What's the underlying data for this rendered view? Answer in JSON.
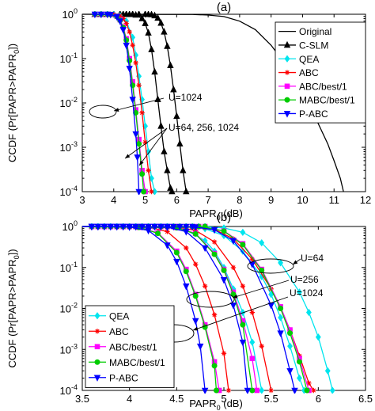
{
  "chart_data": [
    {
      "type": "line",
      "title": "(a)",
      "xlabel": "PAPR",
      "xlabel_sub": "0",
      "xlabel_unit": "(dB)",
      "ylabel_parts": [
        "CCDF (Pr[PAPR>PAPR",
        "0",
        "])"
      ],
      "xlim": [
        3,
        12
      ],
      "ylim": [
        0.0001,
        1
      ],
      "y_scale": "log",
      "xticks": [
        3,
        4,
        5,
        6,
        7,
        8,
        9,
        10,
        11,
        12
      ],
      "yticks": [
        {
          "value": 1,
          "mant": "10",
          "exp": "0"
        },
        {
          "value": 0.1,
          "mant": "10",
          "exp": "-1"
        },
        {
          "value": 0.01,
          "mant": "10",
          "exp": "-2"
        },
        {
          "value": 0.001,
          "mant": "10",
          "exp": "-3"
        },
        {
          "value": 0.0001,
          "mant": "10",
          "exp": "-4"
        }
      ],
      "legend_position": "top-right",
      "series": [
        {
          "name": "Original",
          "color": "#000000",
          "marker": "none",
          "x": [
            3,
            6.5,
            7.0,
            7.5,
            8.0,
            8.5,
            9.0,
            9.5,
            10.0,
            10.5,
            10.8,
            11.0,
            11.2,
            11.3
          ],
          "y": [
            1,
            0.99,
            0.96,
            0.89,
            0.7,
            0.45,
            0.2,
            0.068,
            0.017,
            0.0034,
            0.0012,
            0.0005,
            0.0002,
            0.0001
          ]
        },
        {
          "name": "C-SLM",
          "color": "#000000",
          "marker": "triangle-up",
          "x": [
            3.3,
            5.0,
            5.1,
            5.2,
            5.3,
            5.4,
            5.5,
            5.6,
            5.7,
            5.8,
            5.9,
            6.0,
            6.1,
            6.2,
            6.3
          ],
          "y": [
            1,
            1,
            0.99,
            0.98,
            0.93,
            0.82,
            0.63,
            0.4,
            0.19,
            0.07,
            0.02,
            0.005,
            0.0012,
            0.0003,
            0.0001
          ]
        },
        {
          "name": "C-SLM",
          "color": "#000000",
          "marker": "triangle-up",
          "x": [
            3.3,
            4.3,
            4.5,
            4.7,
            4.9,
            5.0,
            5.1,
            5.2,
            5.3,
            5.4,
            5.5,
            5.6,
            5.7,
            5.8,
            5.85
          ],
          "y": [
            1,
            1,
            0.99,
            0.96,
            0.8,
            0.62,
            0.38,
            0.16,
            0.05,
            0.012,
            0.003,
            0.0008,
            0.0003,
            0.00012,
            0.0001
          ]
        },
        {
          "name": "QEA",
          "color": "#00e5ee",
          "marker": "diamond",
          "x": [
            3.3,
            4.0,
            4.2,
            4.4,
            4.6,
            4.7,
            4.8,
            4.9,
            5.0,
            5.1,
            5.2,
            5.3
          ],
          "y": [
            1,
            0.99,
            0.93,
            0.7,
            0.3,
            0.12,
            0.04,
            0.012,
            0.003,
            0.0008,
            0.0002,
            0.0001
          ]
        },
        {
          "name": "ABC",
          "color": "#ff0000",
          "marker": "star",
          "x": [
            3.3,
            4.0,
            4.2,
            4.3,
            4.4,
            4.5,
            4.6,
            4.7,
            4.8,
            4.9,
            5.0,
            5.1,
            5.2
          ],
          "y": [
            1,
            0.99,
            0.92,
            0.8,
            0.62,
            0.4,
            0.2,
            0.08,
            0.025,
            0.006,
            0.0013,
            0.0003,
            0.0001
          ]
        },
        {
          "name": "ABC/best/1",
          "color": "#ff00ff",
          "marker": "square",
          "x": [
            3.3,
            3.9,
            4.1,
            4.2,
            4.3,
            4.4,
            4.5,
            4.6,
            4.7,
            4.8,
            4.9,
            5.0
          ],
          "y": [
            1,
            0.99,
            0.9,
            0.75,
            0.52,
            0.28,
            0.1,
            0.03,
            0.007,
            0.0015,
            0.0003,
            0.0001
          ]
        },
        {
          "name": "MABC/best/1",
          "color": "#00cc00",
          "marker": "circle",
          "x": [
            3.3,
            3.9,
            4.1,
            4.2,
            4.3,
            4.4,
            4.5,
            4.6,
            4.7,
            4.8,
            4.9,
            4.95
          ],
          "y": [
            1,
            0.99,
            0.89,
            0.73,
            0.5,
            0.26,
            0.09,
            0.025,
            0.006,
            0.0012,
            0.00025,
            0.0001
          ]
        },
        {
          "name": "P-ABC",
          "color": "#0000ff",
          "marker": "triangle-down",
          "x": [
            3.3,
            3.9,
            4.1,
            4.2,
            4.3,
            4.4,
            4.5,
            4.6,
            4.7,
            4.75,
            4.8
          ],
          "y": [
            1,
            0.99,
            0.88,
            0.7,
            0.45,
            0.2,
            0.06,
            0.012,
            0.002,
            0.0006,
            0.0001
          ]
        }
      ],
      "annotations": [
        {
          "text": "U=1024"
        },
        {
          "text": "U=64, 256, 1024"
        }
      ]
    },
    {
      "type": "line",
      "title": "(b)",
      "xlabel": "PAPR",
      "xlabel_sub": "0",
      "xlabel_unit": "(dB)",
      "ylabel_parts": [
        "CCDF (Pr[PAPR>PAPR",
        "0",
        "])"
      ],
      "xlim": [
        3.5,
        6.5
      ],
      "ylim": [
        0.0001,
        1
      ],
      "y_scale": "log",
      "xticks": [
        3.5,
        4,
        4.5,
        5,
        5.5,
        6,
        6.5
      ],
      "yticks": [
        {
          "value": 1,
          "mant": "10",
          "exp": "0"
        },
        {
          "value": 0.1,
          "mant": "10",
          "exp": "-1"
        },
        {
          "value": 0.01,
          "mant": "10",
          "exp": "-2"
        },
        {
          "value": 0.001,
          "mant": "10",
          "exp": "-3"
        },
        {
          "value": 0.0001,
          "mant": "10",
          "exp": "-4"
        }
      ],
      "legend_position": "bottom-left",
      "series": [
        {
          "name": "QEA",
          "color": "#00e5ee",
          "marker": "diamond",
          "x": [
            3.5,
            4.4,
            4.6,
            4.8,
            4.9,
            5.0,
            5.1,
            5.2,
            5.3,
            5.4
          ],
          "y": [
            1,
            0.97,
            0.82,
            0.45,
            0.25,
            0.1,
            0.03,
            0.008,
            0.0015,
            0.0001
          ]
        },
        {
          "name": "QEA",
          "color": "#00e5ee",
          "marker": "diamond",
          "x": [
            3.5,
            4.6,
            4.8,
            5.0,
            5.2,
            5.4,
            5.5,
            5.6,
            5.7,
            5.8,
            5.85
          ],
          "y": [
            1,
            0.98,
            0.88,
            0.6,
            0.25,
            0.06,
            0.022,
            0.006,
            0.0012,
            0.0002,
            0.0001
          ]
        },
        {
          "name": "QEA",
          "color": "#00e5ee",
          "marker": "diamond",
          "x": [
            3.5,
            4.8,
            5.0,
            5.2,
            5.4,
            5.6,
            5.8,
            5.9,
            6.0,
            6.1,
            6.15
          ],
          "y": [
            1,
            0.99,
            0.92,
            0.72,
            0.4,
            0.13,
            0.025,
            0.008,
            0.002,
            0.0003,
            0.0001
          ]
        },
        {
          "name": "ABC",
          "color": "#ff0000",
          "marker": "star",
          "x": [
            3.5,
            4.2,
            4.4,
            4.6,
            4.7,
            4.8,
            4.9,
            5.0,
            5.05
          ],
          "y": [
            1,
            0.96,
            0.75,
            0.3,
            0.12,
            0.035,
            0.007,
            0.0008,
            0.0001
          ]
        },
        {
          "name": "ABC",
          "color": "#ff0000",
          "marker": "star",
          "x": [
            3.5,
            4.5,
            4.7,
            4.9,
            5.1,
            5.2,
            5.3,
            5.4,
            5.5
          ],
          "y": [
            1,
            0.97,
            0.8,
            0.42,
            0.1,
            0.035,
            0.008,
            0.0012,
            0.0001
          ]
        },
        {
          "name": "ABC",
          "color": "#ff0000",
          "marker": "star",
          "x": [
            3.5,
            4.7,
            4.9,
            5.1,
            5.3,
            5.5,
            5.6,
            5.7,
            5.8,
            5.9,
            5.95
          ],
          "y": [
            1,
            0.98,
            0.85,
            0.5,
            0.16,
            0.03,
            0.01,
            0.003,
            0.0007,
            0.00015,
            0.0001
          ]
        },
        {
          "name": "ABC/best/1",
          "color": "#ff00ff",
          "marker": "square",
          "x": [
            3.5,
            4.1,
            4.3,
            4.5,
            4.6,
            4.7,
            4.8,
            4.9,
            4.95
          ],
          "y": [
            1,
            0.95,
            0.7,
            0.25,
            0.09,
            0.022,
            0.004,
            0.0005,
            0.0001
          ]
        },
        {
          "name": "ABC/best/1",
          "color": "#ff00ff",
          "marker": "square",
          "x": [
            3.5,
            4.5,
            4.7,
            4.9,
            5.0,
            5.1,
            5.2,
            5.3,
            5.35
          ],
          "y": [
            1,
            0.94,
            0.68,
            0.22,
            0.09,
            0.025,
            0.005,
            0.0006,
            0.0001
          ]
        },
        {
          "name": "ABC/best/1",
          "color": "#ff00ff",
          "marker": "square",
          "x": [
            3.5,
            4.8,
            5.0,
            5.2,
            5.4,
            5.6,
            5.7,
            5.8,
            5.9
          ],
          "y": [
            1,
            0.96,
            0.78,
            0.38,
            0.09,
            0.011,
            0.003,
            0.0006,
            0.0001
          ]
        },
        {
          "name": "MABC/best/1",
          "color": "#00cc00",
          "marker": "circle",
          "x": [
            3.5,
            4.1,
            4.3,
            4.5,
            4.6,
            4.7,
            4.8,
            4.9,
            4.92
          ],
          "y": [
            1,
            0.95,
            0.68,
            0.23,
            0.08,
            0.02,
            0.0035,
            0.0004,
            0.0001
          ]
        },
        {
          "name": "MABC/best/1",
          "color": "#00cc00",
          "marker": "circle",
          "x": [
            3.5,
            4.5,
            4.7,
            4.9,
            5.0,
            5.1,
            5.2,
            5.3
          ],
          "y": [
            1,
            0.93,
            0.66,
            0.21,
            0.085,
            0.022,
            0.004,
            0.0001
          ]
        },
        {
          "name": "MABC/best/1",
          "color": "#00cc00",
          "marker": "circle",
          "x": [
            3.5,
            4.8,
            5.0,
            5.2,
            5.4,
            5.6,
            5.7,
            5.8,
            5.88
          ],
          "y": [
            1,
            0.96,
            0.77,
            0.36,
            0.085,
            0.01,
            0.0025,
            0.0005,
            0.0001
          ]
        },
        {
          "name": "P-ABC",
          "color": "#0000ff",
          "marker": "triangle-down",
          "x": [
            3.5,
            4.0,
            4.2,
            4.4,
            4.5,
            4.6,
            4.7,
            4.75,
            4.8
          ],
          "y": [
            1,
            0.97,
            0.8,
            0.35,
            0.14,
            0.035,
            0.005,
            0.0012,
            0.0001
          ]
        },
        {
          "name": "P-ABC",
          "color": "#0000ff",
          "marker": "triangle-down",
          "x": [
            3.5,
            4.4,
            4.6,
            4.8,
            5.0,
            5.1,
            5.2,
            5.25
          ],
          "y": [
            1,
            0.96,
            0.75,
            0.3,
            0.05,
            0.012,
            0.0015,
            0.0001
          ]
        },
        {
          "name": "P-ABC",
          "color": "#0000ff",
          "marker": "triangle-down",
          "x": [
            3.5,
            4.7,
            4.9,
            5.1,
            5.3,
            5.5,
            5.6,
            5.7,
            5.75
          ],
          "y": [
            1,
            0.97,
            0.83,
            0.45,
            0.12,
            0.012,
            0.0025,
            0.0003,
            0.0001
          ]
        }
      ],
      "legend": [
        {
          "name": "QEA",
          "color": "#00e5ee",
          "marker": "diamond"
        },
        {
          "name": "ABC",
          "color": "#ff0000",
          "marker": "star"
        },
        {
          "name": "ABC/best/1",
          "color": "#ff00ff",
          "marker": "square"
        },
        {
          "name": "MABC/best/1",
          "color": "#00cc00",
          "marker": "circle"
        },
        {
          "name": "P-ABC",
          "color": "#0000ff",
          "marker": "triangle-down"
        }
      ],
      "annotations": [
        {
          "text": "U=64"
        },
        {
          "text": "U=256"
        },
        {
          "text": "U=1024"
        }
      ]
    }
  ]
}
